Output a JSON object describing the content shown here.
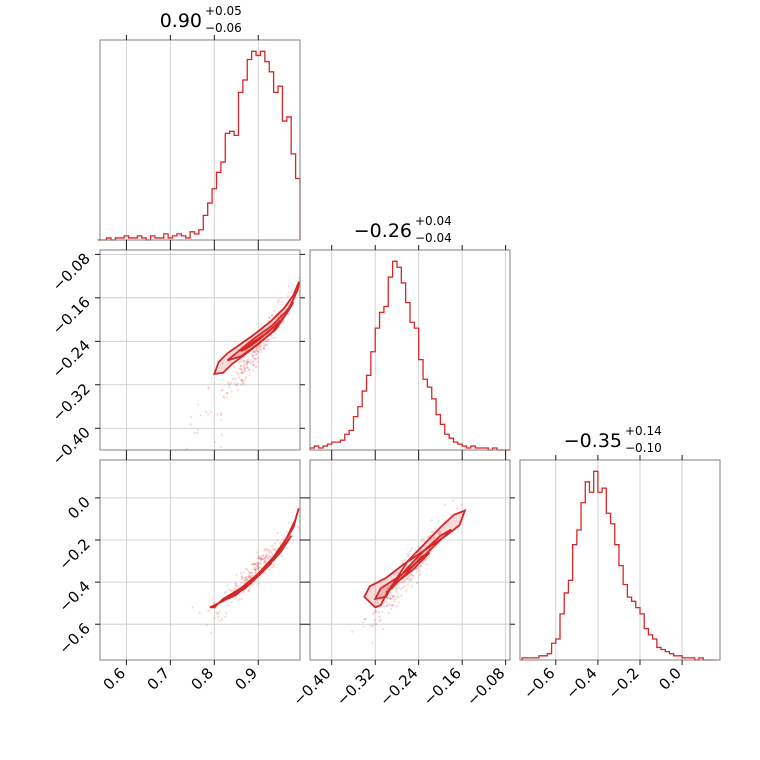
{
  "chart_data": {
    "type": "corner",
    "color": "#d62728",
    "parameters": [
      {
        "median": 0.9,
        "err_plus": 0.05,
        "err_minus": 0.06,
        "title_main": "0.90",
        "title_plus": "+0.05",
        "title_minus": "−0.06",
        "range": [
          0.54,
          0.995
        ],
        "ticks": [
          0.6,
          0.7,
          0.8,
          0.9
        ],
        "tick_labels": [
          "0.6",
          "0.7",
          "0.8",
          "0.9"
        ],
        "hist_x": [
          0.54,
          0.55,
          0.56,
          0.57,
          0.58,
          0.59,
          0.6,
          0.61,
          0.62,
          0.63,
          0.64,
          0.65,
          0.66,
          0.67,
          0.68,
          0.69,
          0.7,
          0.71,
          0.72,
          0.73,
          0.74,
          0.75,
          0.76,
          0.77,
          0.78,
          0.79,
          0.8,
          0.81,
          0.82,
          0.83,
          0.84,
          0.85,
          0.86,
          0.87,
          0.88,
          0.89,
          0.9,
          0.91,
          0.92,
          0.93,
          0.94,
          0.95,
          0.96,
          0.97,
          0.98,
          0.99
        ],
        "hist_counts": [
          0,
          0,
          1,
          0,
          1,
          1,
          2,
          1,
          1,
          2,
          1,
          0,
          2,
          1,
          1,
          3,
          1,
          2,
          3,
          2,
          1,
          4,
          3,
          5,
          12,
          18,
          25,
          33,
          38,
          52,
          53,
          51,
          72,
          78,
          88,
          92,
          90,
          92,
          87,
          82,
          72,
          75,
          58,
          60,
          42,
          30
        ]
      },
      {
        "median": -0.26,
        "err_plus": 0.04,
        "err_minus": 0.04,
        "title_main": "−0.26",
        "title_plus": "+0.04",
        "title_minus": "−0.04",
        "range": [
          -0.44,
          -0.072
        ],
        "ticks": [
          -0.4,
          -0.32,
          -0.24,
          -0.16,
          -0.08
        ],
        "tick_labels": [
          "−0.40",
          "−0.32",
          "−0.24",
          "−0.16",
          "−0.08"
        ],
        "hist_x": [
          -0.436,
          -0.428,
          -0.42,
          -0.412,
          -0.404,
          -0.396,
          -0.388,
          -0.38,
          -0.372,
          -0.364,
          -0.356,
          -0.348,
          -0.34,
          -0.332,
          -0.324,
          -0.316,
          -0.308,
          -0.3,
          -0.292,
          -0.284,
          -0.276,
          -0.268,
          -0.26,
          -0.252,
          -0.244,
          -0.236,
          -0.228,
          -0.22,
          -0.212,
          -0.204,
          -0.196,
          -0.188,
          -0.18,
          -0.172,
          -0.164,
          -0.156,
          -0.148,
          -0.14,
          -0.132,
          -0.124,
          -0.116,
          -0.108,
          -0.1,
          -0.092,
          -0.084,
          -0.076
        ],
        "hist_counts": [
          1,
          2,
          1,
          2,
          3,
          4,
          4,
          5,
          8,
          10,
          17,
          22,
          30,
          38,
          50,
          62,
          70,
          73,
          88,
          96,
          93,
          85,
          75,
          65,
          62,
          46,
          36,
          32,
          26,
          18,
          13,
          8,
          6,
          4,
          3,
          2,
          1,
          2,
          1,
          1,
          1,
          0,
          1,
          0,
          0,
          0
        ]
      },
      {
        "median": -0.35,
        "err_plus": 0.14,
        "err_minus": 0.1,
        "title_main": "−0.35",
        "title_plus": "+0.14",
        "title_minus": "−0.10",
        "range": [
          -0.77,
          0.18
        ],
        "ticks": [
          -0.6,
          -0.4,
          -0.2,
          0.0
        ],
        "tick_labels": [
          "−0.6",
          "−0.4",
          "−0.2",
          "0.0"
        ],
        "hist_x": [
          -0.75,
          -0.73,
          -0.71,
          -0.69,
          -0.67,
          -0.65,
          -0.63,
          -0.61,
          -0.59,
          -0.57,
          -0.55,
          -0.53,
          -0.51,
          -0.49,
          -0.47,
          -0.45,
          -0.43,
          -0.41,
          -0.39,
          -0.37,
          -0.35,
          -0.33,
          -0.31,
          -0.29,
          -0.27,
          -0.25,
          -0.23,
          -0.21,
          -0.19,
          -0.17,
          -0.15,
          -0.13,
          -0.11,
          -0.09,
          -0.07,
          -0.05,
          -0.03,
          -0.01,
          0.01,
          0.03,
          0.05,
          0.07,
          0.09,
          0.11,
          0.13,
          0.15
        ],
        "hist_counts": [
          1,
          1,
          1,
          1,
          2,
          2,
          3,
          8,
          10,
          22,
          32,
          38,
          55,
          62,
          75,
          85,
          80,
          90,
          80,
          82,
          70,
          65,
          55,
          45,
          36,
          30,
          28,
          25,
          22,
          15,
          12,
          10,
          6,
          5,
          4,
          3,
          2,
          2,
          1,
          1,
          1,
          0,
          1,
          0,
          0,
          0
        ]
      }
    ],
    "contours": [
      {
        "pair": [
          0,
          1
        ],
        "levels": [
          [
            [
              0.8,
              -0.3
            ],
            [
              0.81,
              -0.278
            ],
            [
              0.83,
              -0.262
            ],
            [
              0.86,
              -0.245
            ],
            [
              0.89,
              -0.228
            ],
            [
              0.93,
              -0.202
            ],
            [
              0.96,
              -0.178
            ],
            [
              0.98,
              -0.155
            ],
            [
              0.993,
              -0.13
            ],
            [
              0.99,
              -0.145
            ],
            [
              0.965,
              -0.188
            ],
            [
              0.93,
              -0.225
            ],
            [
              0.88,
              -0.258
            ],
            [
              0.84,
              -0.282
            ],
            [
              0.82,
              -0.298
            ]
          ],
          [
            [
              0.83,
              -0.275
            ],
            [
              0.86,
              -0.255
            ],
            [
              0.89,
              -0.235
            ],
            [
              0.93,
              -0.212
            ],
            [
              0.96,
              -0.188
            ],
            [
              0.98,
              -0.168
            ],
            [
              0.97,
              -0.182
            ],
            [
              0.94,
              -0.218
            ],
            [
              0.9,
              -0.245
            ],
            [
              0.86,
              -0.268
            ]
          ],
          [
            [
              0.86,
              -0.258
            ],
            [
              0.89,
              -0.24
            ],
            [
              0.92,
              -0.225
            ],
            [
              0.95,
              -0.202
            ],
            [
              0.94,
              -0.21
            ],
            [
              0.9,
              -0.238
            ],
            [
              0.87,
              -0.255
            ]
          ]
        ]
      },
      {
        "pair": [
          0,
          2
        ],
        "levels": [
          [
            [
              0.79,
              -0.52
            ],
            [
              0.82,
              -0.49
            ],
            [
              0.86,
              -0.44
            ],
            [
              0.9,
              -0.37
            ],
            [
              0.93,
              -0.3
            ],
            [
              0.96,
              -0.21
            ],
            [
              0.98,
              -0.14
            ],
            [
              0.992,
              -0.05
            ],
            [
              0.985,
              -0.1
            ],
            [
              0.965,
              -0.19
            ],
            [
              0.935,
              -0.28
            ],
            [
              0.9,
              -0.36
            ],
            [
              0.86,
              -0.43
            ],
            [
              0.82,
              -0.48
            ],
            [
              0.8,
              -0.52
            ]
          ],
          [
            [
              0.83,
              -0.48
            ],
            [
              0.87,
              -0.43
            ],
            [
              0.91,
              -0.35
            ],
            [
              0.95,
              -0.26
            ],
            [
              0.975,
              -0.18
            ],
            [
              0.965,
              -0.21
            ],
            [
              0.93,
              -0.3
            ],
            [
              0.89,
              -0.39
            ],
            [
              0.85,
              -0.46
            ]
          ],
          [
            [
              0.86,
              -0.44
            ],
            [
              0.9,
              -0.37
            ],
            [
              0.93,
              -0.31
            ],
            [
              0.92,
              -0.33
            ],
            [
              0.88,
              -0.41
            ]
          ]
        ]
      },
      {
        "pair": [
          1,
          2
        ],
        "levels": [
          [
            [
              -0.32,
              -0.52
            ],
            [
              -0.34,
              -0.47
            ],
            [
              -0.33,
              -0.42
            ],
            [
              -0.3,
              -0.38
            ],
            [
              -0.27,
              -0.32
            ],
            [
              -0.23,
              -0.25
            ],
            [
              -0.19,
              -0.18
            ],
            [
              -0.165,
              -0.13
            ],
            [
              -0.155,
              -0.06
            ],
            [
              -0.175,
              -0.08
            ],
            [
              -0.2,
              -0.14
            ],
            [
              -0.23,
              -0.22
            ],
            [
              -0.26,
              -0.3
            ],
            [
              -0.28,
              -0.38
            ],
            [
              -0.3,
              -0.46
            ],
            [
              -0.31,
              -0.51
            ]
          ],
          [
            [
              -0.32,
              -0.48
            ],
            [
              -0.31,
              -0.43
            ],
            [
              -0.28,
              -0.38
            ],
            [
              -0.24,
              -0.3
            ],
            [
              -0.2,
              -0.2
            ],
            [
              -0.18,
              -0.15
            ],
            [
              -0.2,
              -0.18
            ],
            [
              -0.23,
              -0.25
            ],
            [
              -0.26,
              -0.33
            ],
            [
              -0.29,
              -0.42
            ],
            [
              -0.3,
              -0.47
            ]
          ],
          [
            [
              -0.3,
              -0.45
            ],
            [
              -0.28,
              -0.4
            ],
            [
              -0.25,
              -0.34
            ],
            [
              -0.22,
              -0.26
            ],
            [
              -0.235,
              -0.28
            ],
            [
              -0.26,
              -0.35
            ],
            [
              -0.29,
              -0.43
            ]
          ]
        ]
      }
    ]
  }
}
